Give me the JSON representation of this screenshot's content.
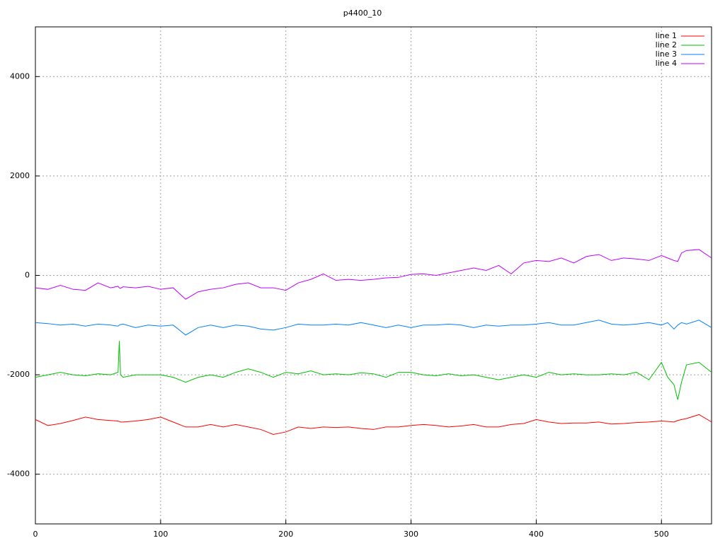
{
  "chart_data": {
    "type": "line",
    "title": "p4400_10",
    "x": [
      0,
      10,
      20,
      30,
      40,
      50,
      60,
      66,
      67,
      68,
      70,
      80,
      90,
      100,
      110,
      120,
      130,
      140,
      150,
      160,
      170,
      180,
      190,
      200,
      210,
      220,
      230,
      240,
      250,
      260,
      270,
      280,
      290,
      300,
      310,
      320,
      330,
      340,
      350,
      360,
      370,
      380,
      390,
      400,
      410,
      420,
      430,
      440,
      450,
      460,
      470,
      480,
      490,
      500,
      505,
      510,
      513,
      516,
      520,
      530,
      540
    ],
    "series": [
      {
        "name": "line 1",
        "color": "#ff0000",
        "values": [
          -2900,
          -3020,
          -2980,
          -2920,
          -2850,
          -2900,
          -2920,
          -2930,
          -2940,
          -2950,
          -2950,
          -2930,
          -2900,
          -2850,
          -2950,
          -3050,
          -3050,
          -3000,
          -3050,
          -3000,
          -3050,
          -3100,
          -3200,
          -3150,
          -3050,
          -3080,
          -3050,
          -3060,
          -3050,
          -3080,
          -3100,
          -3050,
          -3050,
          -3020,
          -3000,
          -3020,
          -3050,
          -3030,
          -3000,
          -3050,
          -3050,
          -3000,
          -2980,
          -2900,
          -2950,
          -2980,
          -2970,
          -2970,
          -2950,
          -2990,
          -2980,
          -2960,
          -2950,
          -2930,
          -2940,
          -2950,
          -2920,
          -2900,
          -2880,
          -2800,
          -2950
        ]
      },
      {
        "name": "line 2",
        "color": "#00c000",
        "values": [
          -2050,
          -2000,
          -1950,
          -2000,
          -2020,
          -1980,
          -2000,
          -1950,
          -1320,
          -2000,
          -2050,
          -2000,
          -2000,
          -2000,
          -2050,
          -2150,
          -2050,
          -2000,
          -2050,
          -1950,
          -1880,
          -1950,
          -2050,
          -1950,
          -1980,
          -1920,
          -2000,
          -1980,
          -2000,
          -1960,
          -1980,
          -2050,
          -1950,
          -1950,
          -2000,
          -2020,
          -1980,
          -2020,
          -2000,
          -2050,
          -2100,
          -2050,
          -2000,
          -2050,
          -1950,
          -2000,
          -1980,
          -2000,
          -2000,
          -1980,
          -2000,
          -1950,
          -2100,
          -1750,
          -2050,
          -2200,
          -2500,
          -2150,
          -1800,
          -1750,
          -1950
        ]
      },
      {
        "name": "line 3",
        "color": "#0080ff",
        "values": [
          -950,
          -970,
          -1000,
          -980,
          -1020,
          -980,
          -1000,
          -1020,
          -1000,
          -990,
          -980,
          -1050,
          -1000,
          -1020,
          -1000,
          -1200,
          -1050,
          -1000,
          -1050,
          -1000,
          -1020,
          -1080,
          -1100,
          -1050,
          -980,
          -1000,
          -1000,
          -980,
          -1000,
          -950,
          -1000,
          -1050,
          -1000,
          -1050,
          -1000,
          -1000,
          -980,
          -1000,
          -1050,
          -1000,
          -1020,
          -1000,
          -1000,
          -980,
          -950,
          -1000,
          -1000,
          -950,
          -900,
          -980,
          -1000,
          -980,
          -950,
          -1000,
          -950,
          -1080,
          -1000,
          -950,
          -980,
          -900,
          -1050
        ]
      },
      {
        "name": "line 4",
        "color": "#c000ff",
        "values": [
          -250,
          -280,
          -200,
          -280,
          -300,
          -150,
          -250,
          -220,
          -250,
          -260,
          -230,
          -250,
          -220,
          -280,
          -250,
          -480,
          -330,
          -280,
          -250,
          -180,
          -150,
          -250,
          -250,
          -300,
          -150,
          -80,
          30,
          -100,
          -80,
          -100,
          -80,
          -50,
          -40,
          20,
          30,
          0,
          50,
          100,
          150,
          100,
          200,
          30,
          250,
          300,
          280,
          350,
          250,
          380,
          420,
          300,
          350,
          330,
          300,
          400,
          350,
          300,
          280,
          450,
          500,
          520,
          350
        ]
      }
    ],
    "xlim": [
      0,
      540
    ],
    "xticks": [
      0,
      100,
      200,
      300,
      400,
      500
    ],
    "ylim": [
      -5000,
      5000
    ],
    "yticks": [
      -4000,
      -2000,
      0,
      2000,
      4000
    ],
    "grid": true,
    "legend": "top-right"
  }
}
